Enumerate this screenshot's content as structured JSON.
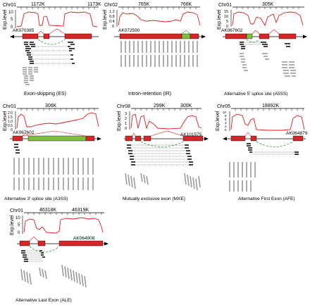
{
  "colors": {
    "trace": "#e31a1c",
    "exon": "#d62728",
    "exon_alt_green": "#7fbf3f",
    "junction_dashed": "#33a02c",
    "read_black": "#111111",
    "read_grey": "#9a9a9a",
    "axis": "#000000"
  },
  "y_axis_label": "Exp.level",
  "panels": [
    {
      "id": "es",
      "chr": "Chr01",
      "ticks": [
        "1172K",
        "1173K"
      ],
      "y_ticks": [
        "10",
        "5",
        "0"
      ],
      "gene_id": "AK070385",
      "caption": "Exon-skipping (ES)",
      "strand": "left"
    },
    {
      "id": "ir",
      "chr": "Chr02",
      "ticks": [
        "765K",
        "766K"
      ],
      "y_ticks": [
        "1.2",
        "0.8",
        "0.4",
        "0"
      ],
      "gene_id": "AK072590",
      "caption": "Intron-retention (IR)",
      "strand": "right"
    },
    {
      "id": "a5ss",
      "chr": "Chr01",
      "ticks": [
        "305K"
      ],
      "y_ticks": [
        "15",
        "10",
        "5",
        "0"
      ],
      "gene_id": "AK067602",
      "caption": "Alternative 5' splice site (A5SS)",
      "strand": "right"
    },
    {
      "id": "a3ss",
      "chr": "Chr01",
      "ticks": [
        "306K"
      ],
      "y_ticks": [
        "2.0",
        "1.5",
        "1.0",
        "0.5",
        "0"
      ],
      "gene_id": "AK067602",
      "caption": "Alternative 3' splice site (A3SS)",
      "strand": "right"
    },
    {
      "id": "mxe",
      "chr": "Chr08",
      "ticks": [
        "299K",
        "300K"
      ],
      "y_ticks": [
        "3",
        "2",
        "1",
        "0"
      ],
      "gene_id": "AK101575",
      "caption": "Mutually exclusive exon (MXE)",
      "strand": "right"
    },
    {
      "id": "afe",
      "chr": "Chr05",
      "ticks": [
        "18892K"
      ],
      "y_ticks": [
        "10",
        "8",
        "6",
        "4",
        "2",
        "0"
      ],
      "gene_id": "AK064879",
      "caption": "Alternative First Exon (AFE)",
      "strand": "left"
    },
    {
      "id": "ale",
      "chr": "Chr01",
      "ticks": [
        "46318K",
        "46319K"
      ],
      "y_ticks": [
        "10",
        "5",
        "0"
      ],
      "gene_id": "AK064908",
      "caption": "Alternative Last Exon (ALE)",
      "strand": "right"
    }
  ]
}
